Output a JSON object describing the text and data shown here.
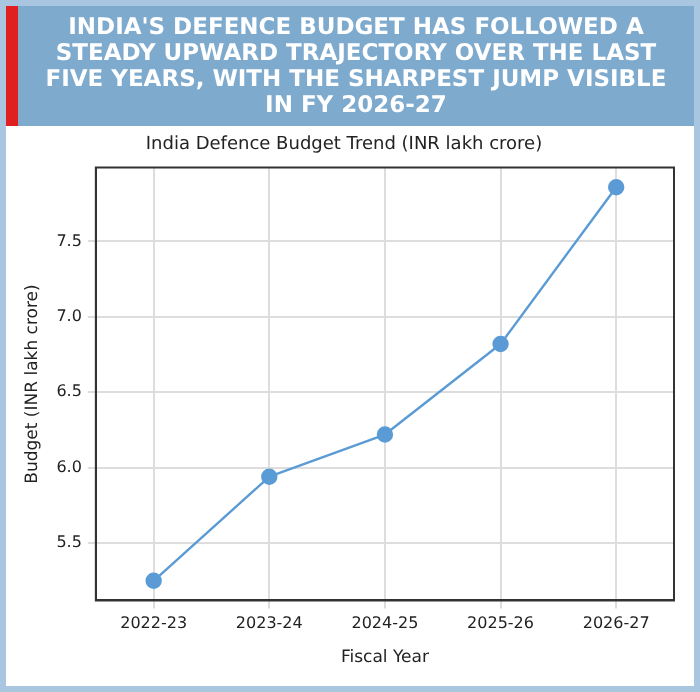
{
  "chart_data": {
    "type": "line",
    "title": "INDIA'S DEFENCE BUDGET HAS FOLLOWED A STEADY UPWARD TRAJECTORY OVER THE LAST FIVE YEARS, WITH THE SHARPEST JUMP VISIBLE IN FY 2026-27",
    "subtitle": "India Defence Budget Trend (INR lakh crore)",
    "xlabel": "Fiscal Year",
    "ylabel": "Budget (INR lakh crore)",
    "categories": [
      "2022-23",
      "2023-24",
      "2024-25",
      "2025-26",
      "2026-27"
    ],
    "series": [
      {
        "color": "#5b9bd5",
        "values": [
          5.25,
          5.94,
          6.22,
          6.82,
          7.86
        ]
      }
    ],
    "ylim": [
      5.12,
      7.99
    ],
    "yticks": [
      5.5,
      {
        "value": 6,
        "label": "6.0"
      },
      6.5,
      {
        "value": 7,
        "label": "7.0"
      },
      7.5
    ],
    "grid": true,
    "marker": "circle",
    "line_style": "solid"
  }
}
